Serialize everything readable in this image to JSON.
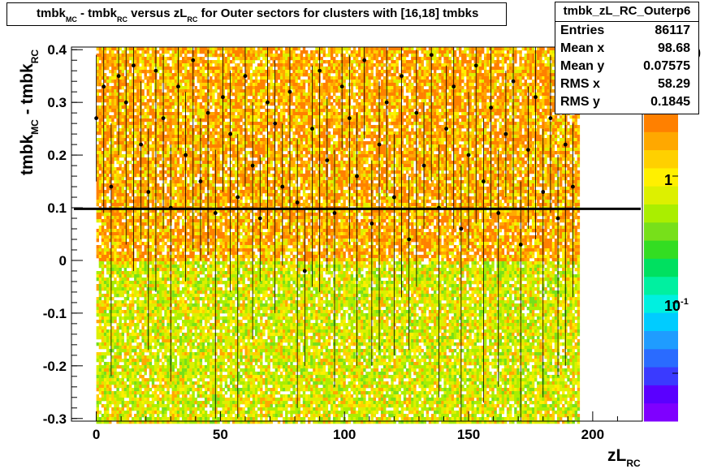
{
  "title": {
    "parts": [
      "tmbk",
      "MC",
      " - tmbk",
      "RC",
      " versus zL",
      "RC",
      " for Outer sectors for clusters with [16,18] tmbks"
    ]
  },
  "stats": {
    "name": "tmbk_zL_RC_Outerp6",
    "rows": [
      {
        "key": "Entries",
        "value": "86117"
      },
      {
        "key": "Mean x",
        "value": "98.68"
      },
      {
        "key": "Mean y",
        "value": "0.07575"
      },
      {
        "key": "RMS x",
        "value": "58.29"
      },
      {
        "key": "RMS y",
        "value": "0.1845"
      }
    ]
  },
  "chart_data": {
    "type": "heatmap",
    "xlabel": {
      "main": "zL",
      "sub": "RC"
    },
    "ylabel": {
      "main": "tmbk",
      "sub1": "MC",
      "mid": " - tmbk",
      "sub2": "RC"
    },
    "xlim": [
      -10,
      220
    ],
    "ylim": [
      -0.305,
      0.405
    ],
    "xticks": [
      0,
      50,
      100,
      150,
      200
    ],
    "yticks": [
      -0.3,
      -0.2,
      -0.1,
      0,
      0.1,
      0.2,
      0.3,
      0.4
    ],
    "ytick_labels": [
      "-0.3",
      "-0.2",
      "-0.1",
      "0",
      "0.1",
      "0.2",
      "0.3",
      "0.4"
    ],
    "color_scale": "log",
    "colorbar_labels": [
      "1",
      "10"
    ],
    "colorbar_exp_label": "-1",
    "colorbar_top_label": "0",
    "colors": {
      "palette": [
        "#7f00ff",
        "#5a00ff",
        "#3a3aff",
        "#2a6bff",
        "#1f9cff",
        "#00ccff",
        "#00f0e0",
        "#00f0a0",
        "#00e060",
        "#33dd22",
        "#77e01a",
        "#aaee00",
        "#ddf000",
        "#fff000",
        "#ffd000",
        "#ffa800",
        "#ff8000"
      ],
      "mean_line": "#000000"
    },
    "data_extent_x": [
      0,
      194
    ],
    "profile_level": 0.098,
    "series": [
      {
        "style": "profile-points",
        "x": [
          0,
          3,
          6,
          9,
          12,
          15,
          18,
          21,
          24,
          27,
          30,
          33,
          36,
          39,
          42,
          45,
          48,
          51,
          54,
          57,
          60,
          63,
          66,
          69,
          72,
          75,
          78,
          81,
          84,
          87,
          90,
          93,
          96,
          99,
          102,
          105,
          108,
          111,
          114,
          117,
          120,
          123,
          126,
          129,
          132,
          135,
          138,
          141,
          144,
          147,
          150,
          153,
          156,
          159,
          162,
          165,
          168,
          171,
          174,
          177,
          180,
          183,
          186,
          189,
          192
        ],
        "y": [
          0.27,
          0.33,
          0.14,
          0.35,
          0.3,
          0.37,
          0.22,
          0.13,
          0.36,
          0.27,
          0.1,
          0.33,
          0.2,
          0.38,
          0.15,
          0.28,
          0.09,
          0.31,
          0.24,
          0.12,
          0.35,
          0.18,
          0.08,
          0.3,
          0.26,
          0.14,
          0.32,
          0.11,
          -0.02,
          0.25,
          0.36,
          0.19,
          0.09,
          0.33,
          0.27,
          0.16,
          0.38,
          0.07,
          0.22,
          0.3,
          0.12,
          0.35,
          0.04,
          0.28,
          0.18,
          0.39,
          0.1,
          0.25,
          0.33,
          0.06,
          0.2,
          0.37,
          0.15,
          0.29,
          0.09,
          0.24,
          0.34,
          0.03,
          0.21,
          0.31,
          0.13,
          0.27,
          0.08,
          0.22,
          0.14
        ]
      }
    ]
  }
}
